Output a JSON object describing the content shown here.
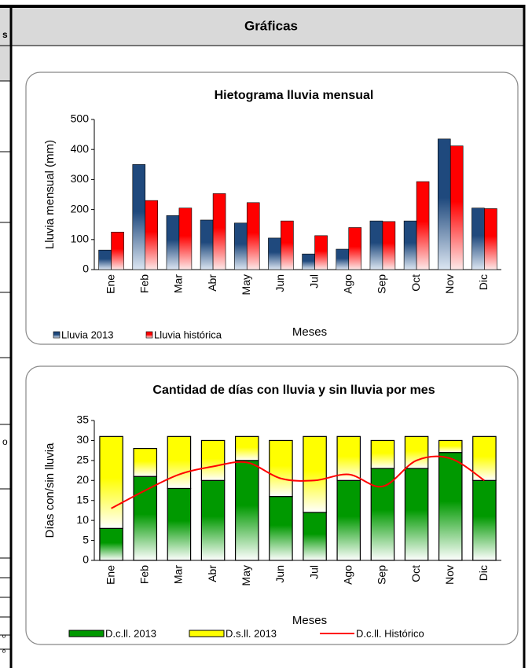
{
  "header": {
    "title": "Gráficas"
  },
  "left_fragments": [
    "s",
    "o",
    "º",
    "º"
  ],
  "chart_data": [
    {
      "type": "bar",
      "title": "Hietograma lluvia mensual",
      "x_label": "Meses",
      "y_label": "Lluvia mensual (mm)",
      "categories": [
        "Ene",
        "Feb",
        "Mar",
        "Abr",
        "May",
        "Jun",
        "Jul",
        "Ago",
        "Sep",
        "Oct",
        "Nov",
        "Dic"
      ],
      "series": [
        {
          "name": "Lluvia 2013",
          "color": "#1f497d",
          "values": [
            65,
            350,
            180,
            165,
            155,
            105,
            52,
            68,
            162,
            162,
            435,
            205
          ]
        },
        {
          "name": "Lluvia histórica",
          "color": "#ff0000",
          "values": [
            125,
            230,
            205,
            253,
            223,
            162,
            113,
            140,
            160,
            293,
            412,
            203
          ]
        }
      ],
      "ylim": [
        0,
        500
      ],
      "yticks": [
        0,
        100,
        200,
        300,
        400,
        500
      ],
      "legend": "bottom-left"
    },
    {
      "type": "stacked_bar",
      "title": "Cantidad de días con lluvia y sin lluvia por mes",
      "x_label": "Meses",
      "y_label": "Días con/sin lluvia",
      "categories": [
        "Ene",
        "Feb",
        "Mar",
        "Abr",
        "May",
        "Jun",
        "Jul",
        "Ago",
        "Sep",
        "Oct",
        "Nov",
        "Dic"
      ],
      "series": [
        {
          "name": "D.c.ll. 2013",
          "color": "#009900",
          "values": [
            8,
            21,
            18,
            20,
            25,
            16,
            12,
            20,
            23,
            23,
            27,
            20
          ]
        },
        {
          "name": "D.s.ll. 2013",
          "color": "#ffff00",
          "values": [
            23,
            7,
            13,
            10,
            6,
            14,
            19,
            11,
            7,
            8,
            3,
            11
          ]
        },
        {
          "name": "D.c.ll. Histórico",
          "color": "#ff0000",
          "type": "line",
          "values": [
            13,
            17.5,
            21.5,
            23.5,
            24.5,
            20.5,
            20,
            21.5,
            18.5,
            25,
            25.5,
            20
          ]
        }
      ],
      "ylim": [
        0,
        35
      ],
      "yticks": [
        0,
        5,
        10,
        15,
        20,
        25,
        30,
        35
      ],
      "legend": "bottom"
    }
  ]
}
